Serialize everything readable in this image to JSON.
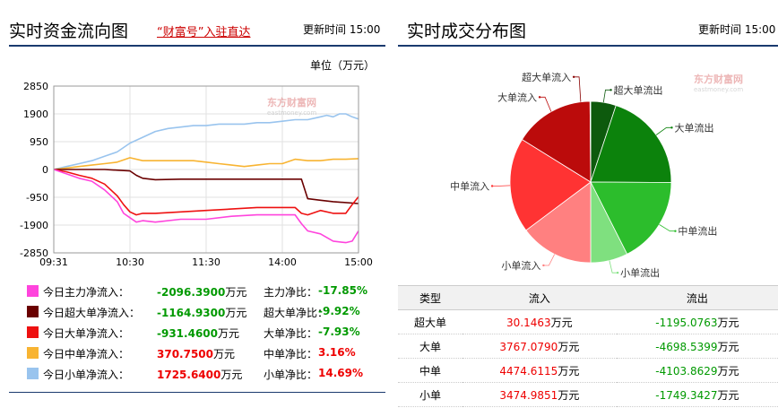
{
  "left_panel": {
    "title": "实时资金流向图",
    "link_text": "“财富号”入驻直达",
    "update_label": "更新时间",
    "update_time": "15:00",
    "unit": "单位（万元）",
    "watermark": "东方财富网",
    "watermark_sub": "eastmoney.com"
  },
  "right_panel": {
    "title": "实时成交分布图",
    "update_label": "更新时间",
    "update_time": "15:00",
    "watermark": "东方财富网",
    "watermark_sub": "eastmoney.com"
  },
  "legend": [
    {
      "name": "今日主力净流入：",
      "value": "-2096.3900",
      "unit": "万元",
      "ratio_name": "主力净比：",
      "ratio": "-17.85%",
      "color": "#ff44dd",
      "value_color": "#090",
      "ratio_color": "#090"
    },
    {
      "name": "今日超大单净流入：",
      "value": "-1164.9300",
      "unit": "万元",
      "ratio_name": "超大单净比：",
      "ratio": "-9.92%",
      "color": "#6a0000",
      "value_color": "#090",
      "ratio_color": "#090"
    },
    {
      "name": "今日大单净流入：",
      "value": "-931.4600",
      "unit": "万元",
      "ratio_name": "大单净比：",
      "ratio": "-7.93%",
      "color": "#ee1111",
      "value_color": "#090",
      "ratio_color": "#090"
    },
    {
      "name": "今日中单净流入：",
      "value": "370.7500",
      "unit": "万元",
      "ratio_name": "中单净比：",
      "ratio": "3.16%",
      "color": "#f8b432",
      "value_color": "#e00",
      "ratio_color": "#e00"
    },
    {
      "name": "今日小单净流入：",
      "value": "1725.6400",
      "unit": "万元",
      "ratio_name": "小单净比：",
      "ratio": "14.69%",
      "color": "#99c4ee",
      "value_color": "#e00",
      "ratio_color": "#e00"
    }
  ],
  "table": {
    "headers": [
      "类型",
      "流入",
      "流出"
    ],
    "rows": [
      {
        "type": "超大单",
        "inflow": "30.1463",
        "outflow": "-1195.0763",
        "unit": "万元"
      },
      {
        "type": "大单",
        "inflow": "3767.0790",
        "outflow": "-4698.5399",
        "unit": "万元"
      },
      {
        "type": "中单",
        "inflow": "4474.6115",
        "outflow": "-4103.8629",
        "unit": "万元"
      },
      {
        "type": "小单",
        "inflow": "3474.9851",
        "outflow": "-1749.3427",
        "unit": "万元"
      }
    ]
  },
  "chart_data": [
    {
      "type": "line",
      "ylim": [
        -2850,
        2850
      ],
      "yticks": [
        2850,
        1900,
        950,
        0,
        -950,
        -1900,
        -2850
      ],
      "ytick_labels": [
        "2850",
        "1900",
        "950",
        "0",
        "-950",
        "-1900",
        "-2850"
      ],
      "xlim": [
        0,
        240
      ],
      "xticks": [
        0,
        60,
        120,
        180,
        240
      ],
      "xtick_labels": [
        "09:31",
        "10:30",
        "11:30",
        "14:00",
        "15:00"
      ],
      "grid": true,
      "series": [
        {
          "color": "#99c4ee",
          "x": [
            0,
            10,
            20,
            30,
            40,
            50,
            60,
            65,
            70,
            80,
            90,
            100,
            110,
            120,
            130,
            140,
            150,
            160,
            170,
            180,
            190,
            200,
            210,
            215,
            220,
            225,
            230,
            235,
            240
          ],
          "y": [
            0,
            100,
            200,
            300,
            450,
            600,
            900,
            1000,
            1100,
            1300,
            1400,
            1450,
            1500,
            1500,
            1550,
            1550,
            1550,
            1600,
            1600,
            1650,
            1700,
            1700,
            1800,
            1850,
            1800,
            1900,
            1900,
            1800,
            1725.64
          ]
        },
        {
          "color": "#f8b432",
          "x": [
            0,
            10,
            20,
            30,
            40,
            50,
            60,
            70,
            80,
            90,
            100,
            110,
            120,
            130,
            140,
            150,
            160,
            170,
            180,
            190,
            200,
            210,
            220,
            230,
            240
          ],
          "y": [
            0,
            50,
            100,
            150,
            200,
            250,
            400,
            300,
            300,
            300,
            300,
            300,
            250,
            200,
            150,
            100,
            150,
            200,
            200,
            350,
            300,
            300,
            350,
            350,
            370.75
          ]
        },
        {
          "color": "#6a0000",
          "x": [
            0,
            20,
            40,
            60,
            65,
            70,
            80,
            100,
            120,
            140,
            160,
            180,
            190,
            195,
            200,
            210,
            220,
            240
          ],
          "y": [
            0,
            0,
            0,
            -50,
            -200,
            -300,
            -350,
            -330,
            -330,
            -330,
            -330,
            -330,
            -330,
            -330,
            -1000,
            -1050,
            -1100,
            -1164.93
          ]
        },
        {
          "color": "#ee1111",
          "x": [
            0,
            10,
            20,
            30,
            40,
            50,
            55,
            60,
            65,
            70,
            80,
            100,
            120,
            140,
            160,
            180,
            190,
            195,
            200,
            210,
            220,
            230,
            235,
            240
          ],
          "y": [
            0,
            -80,
            -200,
            -300,
            -500,
            -900,
            -1200,
            -1450,
            -1550,
            -1500,
            -1500,
            -1450,
            -1400,
            -1350,
            -1300,
            -1300,
            -1300,
            -1500,
            -1550,
            -1400,
            -1500,
            -1500,
            -1200,
            -931.46
          ]
        },
        {
          "color": "#ff44dd",
          "x": [
            0,
            10,
            20,
            30,
            40,
            50,
            55,
            60,
            65,
            70,
            80,
            100,
            120,
            140,
            160,
            180,
            190,
            195,
            200,
            210,
            220,
            230,
            235,
            240
          ],
          "y": [
            0,
            -150,
            -300,
            -400,
            -700,
            -1100,
            -1500,
            -1650,
            -1800,
            -1750,
            -1800,
            -1700,
            -1700,
            -1600,
            -1550,
            -1550,
            -1550,
            -1850,
            -2100,
            -2200,
            -2450,
            -2500,
            -2450,
            -2096.39
          ]
        }
      ]
    },
    {
      "type": "pie",
      "slices": [
        {
          "label": "超大单流出",
          "value": 1195.0763,
          "color": "#0d5a0d"
        },
        {
          "label": "大单流出",
          "value": 4698.5399,
          "color": "#0c820c"
        },
        {
          "label": "中单流出",
          "value": 4103.8629,
          "color": "#2cbd2c"
        },
        {
          "label": "小单流出",
          "value": 1749.3427,
          "color": "#7fe07f"
        },
        {
          "label": "小单流入",
          "value": 3474.9851,
          "color": "#ff8080"
        },
        {
          "label": "中单流入",
          "value": 4474.6115,
          "color": "#ff3333"
        },
        {
          "label": "大单流入",
          "value": 3767.079,
          "color": "#bb0b0b"
        },
        {
          "label": "超大单流入",
          "value": 30.1463,
          "color": "#880000"
        }
      ]
    }
  ]
}
